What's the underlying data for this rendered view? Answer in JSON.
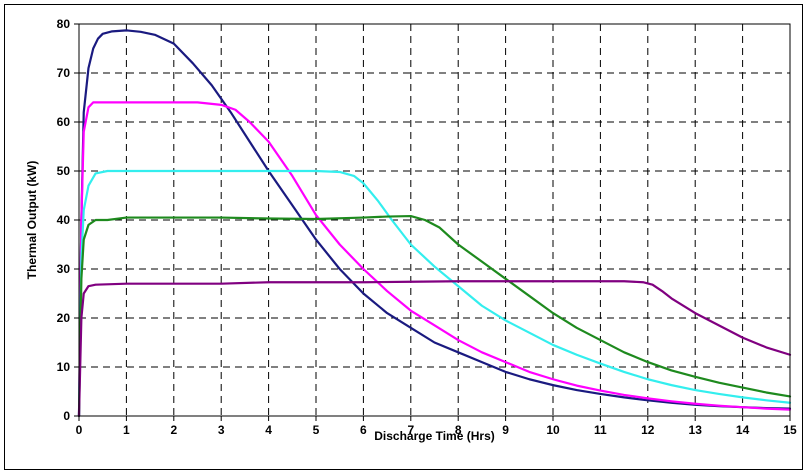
{
  "chart_data": {
    "type": "line",
    "title": "",
    "xlabel": "Discharge Time (Hrs)",
    "ylabel": "Thermal Output (kW)",
    "xlim": [
      0,
      15
    ],
    "ylim": [
      0,
      80
    ],
    "xticks": [
      "0",
      "1",
      "2",
      "3",
      "4",
      "5",
      "6",
      "7",
      "8",
      "9",
      "10",
      "11",
      "12",
      "13",
      "14",
      "15"
    ],
    "yticks": [
      "0",
      "10",
      "20",
      "30",
      "40",
      "50",
      "60",
      "70",
      "80"
    ],
    "grid": true,
    "grid_style": "dashed",
    "legend": "none",
    "series": [
      {
        "color": "#1a1a80",
        "x": [
          0,
          0.05,
          0.1,
          0.2,
          0.3,
          0.4,
          0.5,
          0.7,
          1.0,
          1.3,
          1.6,
          2.0,
          2.4,
          2.8,
          3.2,
          3.6,
          4.0,
          4.5,
          5.0,
          5.5,
          6.0,
          6.5,
          7.0,
          7.5,
          8.0,
          8.5,
          9.0,
          9.5,
          10.0,
          10.5,
          11.0,
          11.5,
          12.0,
          12.5,
          13.0,
          13.5,
          14.0,
          14.5,
          15.0
        ],
        "y": [
          0,
          40,
          62,
          71,
          75,
          77,
          78,
          78.5,
          78.7,
          78.4,
          77.8,
          76,
          72,
          67.5,
          62,
          56,
          50,
          43,
          36,
          30,
          25,
          21,
          18,
          15,
          13,
          11,
          9,
          7.5,
          6.3,
          5.3,
          4.5,
          3.8,
          3.2,
          2.7,
          2.3,
          2,
          1.8,
          1.6,
          1.5
        ]
      },
      {
        "color": "#ff00ff",
        "x": [
          0,
          0.05,
          0.1,
          0.2,
          0.3,
          0.5,
          1.0,
          1.5,
          2.0,
          2.5,
          3.0,
          3.3,
          3.6,
          4.0,
          4.5,
          5.0,
          5.5,
          6.0,
          6.5,
          7.0,
          7.5,
          8.0,
          8.5,
          9.0,
          9.5,
          10.0,
          10.5,
          11.0,
          11.5,
          12.0,
          12.5,
          13.0,
          13.5,
          14.0,
          14.5,
          15.0
        ],
        "y": [
          0,
          40,
          58,
          63,
          64,
          64,
          64,
          64,
          64,
          64,
          63.5,
          62.5,
          60,
          56,
          49,
          41,
          35,
          30,
          25.5,
          21.5,
          18.5,
          15.5,
          13,
          11,
          9,
          7.5,
          6.2,
          5.2,
          4.3,
          3.6,
          3,
          2.5,
          2.1,
          1.8,
          1.5,
          1.3
        ]
      },
      {
        "color": "#33eeee",
        "x": [
          0,
          0.05,
          0.1,
          0.2,
          0.35,
          0.6,
          1.0,
          2.0,
          3.0,
          4.0,
          5.0,
          5.5,
          5.8,
          6.0,
          6.3,
          6.6,
          7.0,
          7.5,
          8.0,
          8.5,
          9.0,
          9.5,
          10.0,
          10.5,
          11.0,
          11.5,
          12.0,
          12.5,
          13.0,
          13.5,
          14.0,
          14.5,
          15.0
        ],
        "y": [
          0,
          32,
          42,
          47,
          49.5,
          50,
          50,
          50,
          50,
          50,
          50,
          49.8,
          49,
          47.5,
          44,
          40,
          35,
          30.5,
          26.5,
          22.5,
          19.5,
          17,
          14.5,
          12.5,
          10.7,
          9,
          7.5,
          6.3,
          5.3,
          4.5,
          3.8,
          3.2,
          2.7
        ]
      },
      {
        "color": "#1e8a1e",
        "x": [
          0,
          0.05,
          0.1,
          0.2,
          0.35,
          0.6,
          1.0,
          2.0,
          3.0,
          4.0,
          5.0,
          6.0,
          6.5,
          7.0,
          7.3,
          7.6,
          8.0,
          8.5,
          9.0,
          9.5,
          10.0,
          10.5,
          11.0,
          11.5,
          12.0,
          12.5,
          13.0,
          13.5,
          14.0,
          14.5,
          15.0
        ],
        "y": [
          0,
          28,
          36,
          39,
          40,
          40,
          40.5,
          40.5,
          40.5,
          40.3,
          40.2,
          40.5,
          40.7,
          40.8,
          40,
          38.5,
          35,
          31.5,
          28,
          24.5,
          21,
          18,
          15.5,
          13,
          11,
          9.3,
          8,
          6.8,
          5.8,
          4.8,
          4
        ]
      },
      {
        "color": "#800080",
        "x": [
          0,
          0.05,
          0.1,
          0.2,
          0.35,
          1.0,
          2.0,
          3.0,
          4.0,
          5.0,
          6.0,
          7.0,
          8.0,
          9.0,
          10.0,
          11.0,
          11.5,
          11.9,
          12.1,
          12.3,
          12.5,
          13.0,
          13.5,
          14.0,
          14.5,
          15.0
        ],
        "y": [
          0,
          20,
          25,
          26.5,
          26.8,
          27,
          27,
          27,
          27.3,
          27.3,
          27.3,
          27.4,
          27.5,
          27.5,
          27.5,
          27.5,
          27.5,
          27.3,
          26.8,
          25.5,
          24,
          21,
          18.5,
          16,
          14,
          12.5
        ]
      }
    ]
  }
}
